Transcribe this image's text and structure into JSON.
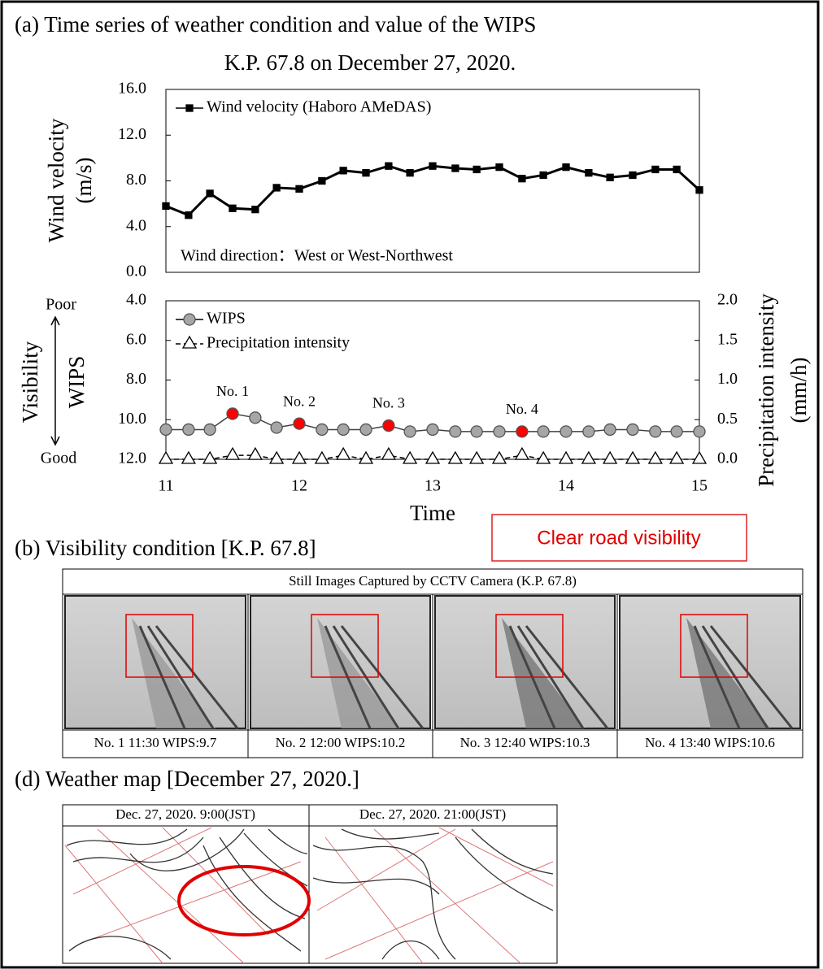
{
  "chart_data": [
    {
      "type": "line",
      "title": "(a) Time series of weather condition and value of the WIPS",
      "subtitle": "K.P. 67.8 on December 27, 2020.",
      "y_label": [
        "Wind velocity",
        "(m/s)"
      ],
      "annotation": "Wind direction：West or West-Northwest",
      "x": [
        11,
        11.17,
        11.33,
        11.5,
        11.67,
        11.83,
        12,
        12.17,
        12.33,
        12.5,
        12.67,
        12.83,
        13,
        13.17,
        13.33,
        13.5,
        13.67,
        13.83,
        14,
        14.17,
        14.33,
        14.5,
        14.67,
        14.83,
        15
      ],
      "xlim": [
        11,
        15
      ],
      "ylim": [
        0,
        16
      ],
      "yticks": [
        {
          "value": 0,
          "label": "0.0"
        },
        {
          "value": 4,
          "label": "4.0"
        },
        {
          "value": 8,
          "label": "8.0"
        },
        {
          "value": 12,
          "label": "12.0"
        },
        {
          "value": 16,
          "label": "16.0"
        }
      ],
      "legend": "upper left",
      "series": [
        {
          "name": "Wind velocity (Haboro AMeDAS)",
          "color": "#000000",
          "marker": "square",
          "values": [
            5.8,
            5.0,
            6.9,
            5.6,
            5.5,
            7.4,
            7.3,
            8.0,
            8.9,
            8.7,
            9.3,
            8.7,
            9.3,
            9.1,
            9.0,
            9.2,
            8.2,
            8.5,
            9.2,
            8.7,
            8.3,
            8.5,
            9.0,
            9.0,
            7.2
          ]
        }
      ]
    },
    {
      "type": "line",
      "x_label": "Time",
      "y_label": [
        "Visibility",
        "WIPS"
      ],
      "y_top": "Poor",
      "y_bottom": "Good",
      "y2_label": [
        "Precipitation intensity",
        "(mm/h)"
      ],
      "x": [
        11,
        11.17,
        11.33,
        11.5,
        11.67,
        11.83,
        12,
        12.17,
        12.33,
        12.5,
        12.67,
        12.83,
        13,
        13.17,
        13.33,
        13.5,
        13.67,
        13.83,
        14,
        14.17,
        14.33,
        14.5,
        14.67,
        14.83,
        15
      ],
      "xlim": [
        11,
        15
      ],
      "xticks": [
        11,
        12,
        13,
        14,
        15
      ],
      "ylim": [
        12,
        4
      ],
      "yticks": [
        {
          "value": 4,
          "label": "4.0"
        },
        {
          "value": 6,
          "label": "6.0"
        },
        {
          "value": 8,
          "label": "8.0"
        },
        {
          "value": 10,
          "label": "10.0"
        },
        {
          "value": 12,
          "label": "12.0"
        }
      ],
      "y2lim": [
        0,
        2
      ],
      "y2ticks": [
        {
          "value": 0,
          "label": "0.0"
        },
        {
          "value": 0.5,
          "label": "0.5"
        },
        {
          "value": 1,
          "label": "1.0"
        },
        {
          "value": 1.5,
          "label": "1.5"
        },
        {
          "value": 2,
          "label": "2.0"
        }
      ],
      "legend": "upper left",
      "highlight_color": "#ff0000",
      "annotations": [
        {
          "text": "No. 1",
          "x": 11.5
        },
        {
          "text": "No. 2",
          "x": 12
        },
        {
          "text": "No. 3",
          "x": 12.67
        },
        {
          "text": "No. 4",
          "x": 13.67
        }
      ],
      "series": [
        {
          "name": "WIPS",
          "color": "#a6a6a6",
          "marker": "circle",
          "values": [
            10.5,
            10.5,
            10.5,
            9.7,
            9.9,
            10.4,
            10.2,
            10.5,
            10.5,
            10.5,
            10.3,
            10.6,
            10.5,
            10.6,
            10.6,
            10.6,
            10.6,
            10.6,
            10.6,
            10.6,
            10.5,
            10.5,
            10.6,
            10.6,
            10.6
          ]
        },
        {
          "name": "Precipitation intensity",
          "color": "#ffffff",
          "marker": "triangle",
          "axis": "y2",
          "values": [
            0,
            0,
            0,
            0.05,
            0.05,
            0,
            0,
            0,
            0.05,
            0,
            0.05,
            0,
            0,
            0,
            0,
            0,
            0.05,
            0,
            0,
            0,
            0,
            0,
            0,
            0,
            0
          ]
        }
      ]
    }
  ],
  "panel_b": {
    "title": "(b) Visibility condition [K.P. 67.8]",
    "callout": "Clear road visibility",
    "header": "Still Images Captured by CCTV Camera (K.P. 67.8)",
    "captions": [
      "No. 1 11:30 WIPS:9.7",
      "No. 2 12:00 WIPS:10.2",
      "No. 3 12:40 WIPS:10.3",
      "No. 4 13:40 WIPS:10.6"
    ]
  },
  "panel_d": {
    "title": "(d) Weather map [December 27, 2020.]",
    "maps": [
      "Dec. 27, 2020. 9:00(JST)",
      "Dec. 27, 2020. 21:00(JST)"
    ]
  }
}
